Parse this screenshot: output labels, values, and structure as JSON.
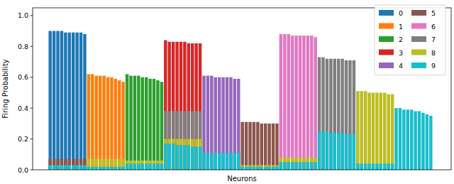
{
  "chart_data": {
    "type": "bar",
    "x_label": "Neurons",
    "y_label": "Firing Probability",
    "categories": [
      null,
      null,
      null,
      null,
      null,
      null,
      null,
      null,
      null,
      null,
      null,
      null,
      null,
      null,
      null,
      null,
      null,
      null,
      null,
      null,
      null,
      null,
      null,
      null,
      null,
      null,
      null,
      null,
      null,
      null,
      null,
      null,
      null,
      null,
      null,
      null,
      null,
      null,
      null,
      null,
      null,
      null,
      null,
      null,
      null,
      null,
      null,
      null,
      null,
      null,
      null,
      null,
      null,
      null,
      null,
      null,
      null,
      null,
      null,
      null,
      null,
      null,
      null,
      null,
      null,
      null,
      null,
      null,
      null,
      null,
      null,
      null,
      null,
      null,
      null,
      null,
      null,
      null,
      null,
      null,
      null,
      null,
      null,
      null,
      null,
      null,
      null,
      null,
      null,
      null,
      null,
      null,
      null,
      null,
      null,
      null,
      null,
      null,
      null,
      null
    ],
    "ylim": [
      0,
      1.05
    ],
    "yticks": [
      {
        "value": 0,
        "label": "0.0"
      },
      {
        "value": 0.2,
        "label": "0.2"
      },
      {
        "value": 0.4,
        "label": "0.4"
      },
      {
        "value": 0.6,
        "label": "0.6"
      },
      {
        "value": 0.8,
        "label": "0.8"
      },
      {
        "value": 1,
        "label": "1.0"
      }
    ],
    "legend": "upper right",
    "tick_labels": "y",
    "grid": false,
    "series": [
      {
        "name": "0",
        "color": "#1f77b4",
        "values": [
          0.9,
          0.9,
          0.9,
          0.9,
          0.89,
          0.89,
          0.89,
          0.89,
          0.89,
          0.88,
          null,
          null,
          null,
          null,
          null,
          null,
          null,
          null,
          null,
          null,
          null,
          null,
          null,
          null,
          null,
          null,
          null,
          null,
          null,
          null,
          null,
          null,
          null,
          null,
          null,
          null,
          null,
          null,
          null,
          null,
          null,
          null,
          null,
          null,
          null,
          null,
          null,
          null,
          null,
          null,
          null,
          null,
          null,
          null,
          null,
          null,
          null,
          null,
          null,
          null,
          null,
          null,
          null,
          null,
          null,
          null,
          null,
          null,
          null,
          null,
          null,
          null,
          null,
          null,
          null,
          null,
          null,
          null,
          null,
          null,
          null,
          null,
          null,
          null,
          null,
          null,
          null,
          null,
          null,
          null,
          null,
          null,
          null,
          null,
          null,
          null,
          null,
          null,
          null,
          null
        ]
      },
      {
        "name": "1",
        "color": "#ff7f0e",
        "values": [
          null,
          null,
          null,
          null,
          null,
          null,
          null,
          null,
          null,
          null,
          0.62,
          0.62,
          0.61,
          0.61,
          0.61,
          0.6,
          0.6,
          0.59,
          0.58,
          0.57,
          null,
          null,
          null,
          null,
          null,
          null,
          null,
          null,
          null,
          null,
          null,
          null,
          null,
          null,
          null,
          null,
          null,
          null,
          null,
          null,
          null,
          null,
          null,
          null,
          null,
          null,
          null,
          null,
          null,
          null,
          null,
          null,
          null,
          null,
          null,
          null,
          null,
          null,
          null,
          null,
          null,
          null,
          null,
          null,
          null,
          null,
          null,
          null,
          null,
          null,
          null,
          null,
          null,
          null,
          null,
          null,
          null,
          null,
          null,
          null,
          null,
          null,
          null,
          null,
          null,
          null,
          null,
          null,
          null,
          null,
          null,
          null,
          null,
          null,
          null,
          null,
          null,
          null,
          null,
          null
        ]
      },
      {
        "name": "2",
        "color": "#2ca02c",
        "values": [
          null,
          null,
          null,
          null,
          null,
          null,
          null,
          null,
          null,
          null,
          null,
          null,
          null,
          null,
          null,
          null,
          null,
          null,
          null,
          null,
          0.62,
          0.61,
          0.61,
          0.61,
          0.6,
          0.6,
          0.59,
          0.59,
          0.58,
          0.57,
          null,
          null,
          null,
          null,
          null,
          null,
          null,
          null,
          null,
          null,
          null,
          null,
          null,
          null,
          null,
          null,
          null,
          null,
          null,
          null,
          null,
          null,
          null,
          null,
          null,
          null,
          null,
          null,
          null,
          null,
          null,
          null,
          null,
          null,
          null,
          null,
          null,
          null,
          null,
          null,
          null,
          null,
          null,
          null,
          null,
          null,
          null,
          null,
          null,
          null,
          null,
          null,
          null,
          null,
          null,
          null,
          null,
          null,
          null,
          null,
          null,
          null,
          null,
          null,
          null,
          null,
          null,
          null,
          null,
          null
        ]
      },
      {
        "name": "3",
        "color": "#d62728",
        "values": [
          null,
          null,
          null,
          null,
          null,
          null,
          null,
          null,
          null,
          null,
          null,
          null,
          null,
          null,
          null,
          null,
          null,
          null,
          null,
          null,
          null,
          null,
          null,
          null,
          null,
          null,
          null,
          null,
          null,
          null,
          0.84,
          0.83,
          0.83,
          0.83,
          0.83,
          0.83,
          0.82,
          0.82,
          0.82,
          0.82,
          null,
          null,
          null,
          null,
          null,
          null,
          null,
          null,
          null,
          null,
          null,
          null,
          null,
          null,
          null,
          null,
          null,
          null,
          null,
          null,
          null,
          null,
          null,
          null,
          null,
          null,
          null,
          null,
          null,
          null,
          null,
          null,
          null,
          null,
          null,
          null,
          null,
          null,
          null,
          null,
          null,
          null,
          null,
          null,
          null,
          null,
          null,
          null,
          null,
          null,
          null,
          null,
          null,
          null,
          null,
          null,
          null,
          null,
          null,
          null
        ]
      },
      {
        "name": "4",
        "color": "#9467bd",
        "values": [
          null,
          null,
          null,
          null,
          null,
          null,
          null,
          null,
          null,
          null,
          null,
          null,
          null,
          null,
          null,
          null,
          null,
          null,
          null,
          null,
          null,
          null,
          null,
          null,
          null,
          null,
          null,
          null,
          null,
          null,
          null,
          null,
          null,
          null,
          null,
          null,
          null,
          null,
          null,
          null,
          0.61,
          0.61,
          0.61,
          0.6,
          0.6,
          0.6,
          0.6,
          0.6,
          0.59,
          0.59,
          null,
          null,
          null,
          null,
          null,
          null,
          null,
          null,
          null,
          null,
          null,
          null,
          null,
          null,
          null,
          null,
          null,
          null,
          null,
          null,
          null,
          null,
          null,
          null,
          null,
          null,
          null,
          null,
          null,
          null,
          null,
          null,
          null,
          null,
          null,
          null,
          null,
          null,
          null,
          null,
          null,
          null,
          null,
          null,
          null,
          null,
          null,
          null,
          null,
          null
        ]
      },
      {
        "name": "5",
        "color": "#8c564b",
        "values": [
          0.07,
          0.07,
          0.07,
          0.07,
          0.07,
          0.07,
          0.07,
          0.07,
          0.07,
          0.07,
          null,
          null,
          null,
          null,
          null,
          null,
          null,
          null,
          null,
          null,
          null,
          null,
          null,
          null,
          null,
          null,
          null,
          null,
          null,
          null,
          null,
          null,
          null,
          null,
          null,
          null,
          null,
          null,
          null,
          null,
          null,
          null,
          null,
          null,
          null,
          null,
          null,
          null,
          null,
          null,
          0.31,
          0.31,
          0.31,
          0.31,
          0.31,
          0.3,
          0.3,
          0.3,
          0.3,
          0.3,
          null,
          null,
          null,
          null,
          null,
          null,
          null,
          null,
          null,
          null,
          null,
          null,
          null,
          null,
          null,
          null,
          null,
          null,
          null,
          null,
          null,
          null,
          null,
          null,
          null,
          null,
          null,
          null,
          null,
          null,
          null,
          null,
          null,
          null,
          null,
          null,
          null,
          null,
          null,
          null
        ]
      },
      {
        "name": "6",
        "color": "#e377c2",
        "values": [
          null,
          null,
          null,
          null,
          null,
          null,
          null,
          null,
          null,
          null,
          null,
          null,
          null,
          null,
          null,
          null,
          null,
          null,
          null,
          null,
          null,
          null,
          null,
          null,
          null,
          null,
          null,
          null,
          null,
          null,
          null,
          null,
          null,
          null,
          null,
          null,
          null,
          null,
          null,
          null,
          null,
          null,
          null,
          null,
          null,
          null,
          null,
          null,
          null,
          null,
          null,
          null,
          null,
          null,
          null,
          null,
          null,
          null,
          null,
          null,
          0.88,
          0.88,
          0.88,
          0.87,
          0.87,
          0.87,
          0.87,
          0.87,
          0.87,
          0.86,
          null,
          null,
          null,
          null,
          null,
          null,
          null,
          null,
          null,
          null,
          null,
          null,
          null,
          null,
          null,
          null,
          null,
          null,
          null,
          null,
          null,
          null,
          null,
          null,
          null,
          null,
          null,
          null,
          null,
          null
        ]
      },
      {
        "name": "7",
        "color": "#7f7f7f",
        "values": [
          null,
          null,
          null,
          null,
          null,
          null,
          null,
          null,
          null,
          null,
          null,
          null,
          null,
          null,
          null,
          null,
          null,
          null,
          null,
          null,
          null,
          null,
          null,
          null,
          null,
          null,
          null,
          null,
          null,
          null,
          0.38,
          0.38,
          0.38,
          0.38,
          0.38,
          0.38,
          0.38,
          0.38,
          0.38,
          0.38,
          null,
          null,
          null,
          null,
          null,
          null,
          null,
          null,
          null,
          null,
          null,
          null,
          null,
          null,
          null,
          null,
          null,
          null,
          null,
          null,
          null,
          null,
          null,
          null,
          null,
          null,
          null,
          null,
          null,
          null,
          0.73,
          0.73,
          0.72,
          0.72,
          0.72,
          0.72,
          0.72,
          0.71,
          0.71,
          0.71,
          null,
          null,
          null,
          null,
          null,
          null,
          null,
          null,
          null,
          null,
          null,
          null,
          null,
          null,
          null,
          null,
          null,
          null,
          null,
          null
        ]
      },
      {
        "name": "8",
        "color": "#bcbd22",
        "values": [
          null,
          null,
          null,
          null,
          null,
          null,
          null,
          null,
          null,
          null,
          0.07,
          0.07,
          0.07,
          0.07,
          0.07,
          0.07,
          0.07,
          0.07,
          0.07,
          0.07,
          0.06,
          0.06,
          0.06,
          0.06,
          0.06,
          0.06,
          0.06,
          0.06,
          0.06,
          0.06,
          0.2,
          0.2,
          0.2,
          0.2,
          0.2,
          0.2,
          0.2,
          0.2,
          0.2,
          0.2,
          null,
          null,
          null,
          null,
          null,
          null,
          null,
          null,
          null,
          null,
          0.03,
          0.03,
          0.03,
          0.03,
          0.03,
          0.03,
          0.03,
          0.03,
          0.03,
          0.03,
          0.08,
          0.08,
          0.08,
          0.08,
          0.08,
          0.08,
          0.08,
          0.08,
          0.08,
          0.08,
          null,
          null,
          null,
          null,
          null,
          null,
          null,
          null,
          null,
          null,
          0.51,
          0.51,
          0.51,
          0.5,
          0.5,
          0.5,
          0.5,
          0.5,
          0.49,
          0.49,
          null,
          null,
          null,
          null,
          null,
          null,
          null,
          null,
          null,
          null
        ]
      },
      {
        "name": "9",
        "color": "#17becf",
        "values": [
          0.03,
          0.03,
          0.03,
          0.03,
          0.03,
          0.03,
          0.03,
          0.03,
          0.03,
          0.03,
          0.02,
          0.02,
          0.02,
          0.02,
          0.02,
          0.02,
          0.02,
          0.02,
          0.02,
          0.02,
          0.04,
          0.04,
          0.04,
          0.04,
          0.04,
          0.04,
          0.04,
          0.04,
          0.04,
          0.04,
          0.17,
          0.17,
          0.17,
          0.16,
          0.16,
          0.16,
          0.16,
          0.15,
          0.15,
          0.15,
          0.11,
          0.11,
          0.11,
          0.11,
          0.11,
          0.11,
          0.11,
          0.11,
          0.11,
          0.11,
          0.02,
          0.02,
          0.02,
          0.02,
          0.02,
          0.02,
          0.02,
          0.02,
          0.02,
          0.02,
          0.05,
          0.05,
          0.05,
          0.05,
          0.05,
          0.05,
          0.05,
          0.05,
          0.05,
          0.05,
          0.25,
          0.25,
          0.25,
          0.24,
          0.24,
          0.24,
          0.24,
          0.23,
          0.23,
          0.23,
          0.04,
          0.04,
          0.04,
          0.04,
          0.04,
          0.04,
          0.04,
          0.04,
          0.04,
          0.04,
          0.4,
          0.4,
          0.39,
          0.39,
          0.39,
          0.38,
          0.38,
          0.37,
          0.36,
          0.35
        ]
      }
    ]
  }
}
